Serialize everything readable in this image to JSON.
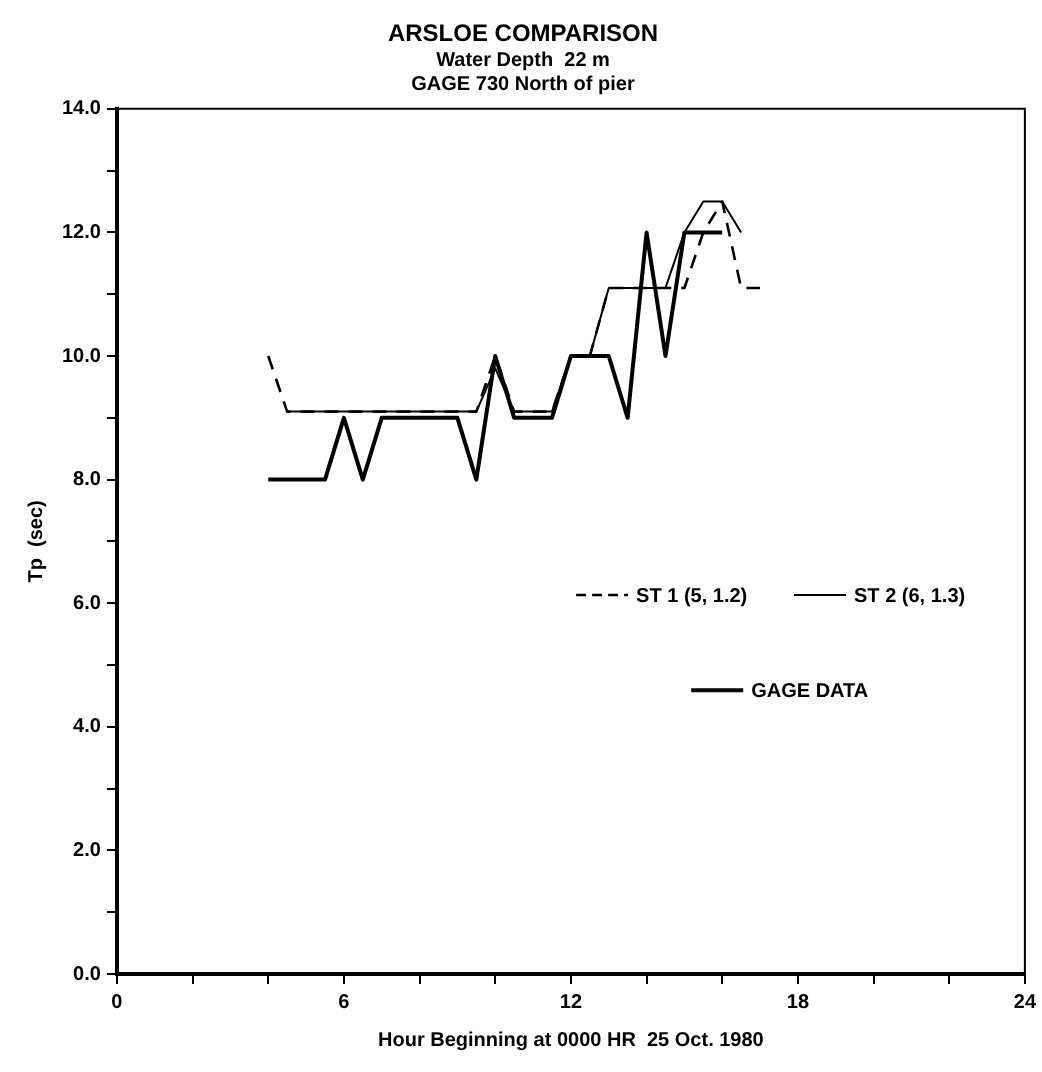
{
  "chart_data": {
    "type": "line",
    "title": "ARSLOE COMPARISON",
    "subtitle": "Water Depth  22 m\nGAGE 730 North of pier",
    "xlabel": "Hour Beginning at 0000 HR  25 Oct. 1980",
    "ylabel": "Tp  (sec)",
    "xlim": [
      0,
      24
    ],
    "xticks": [
      0,
      {
        "value": 2,
        "label": null
      },
      {
        "value": 4,
        "label": null
      },
      6,
      {
        "value": 8,
        "label": null
      },
      {
        "value": 10,
        "label": null
      },
      12,
      {
        "value": 14,
        "label": null
      },
      {
        "value": 16,
        "label": null
      },
      18,
      {
        "value": 20,
        "label": null
      },
      {
        "value": 22,
        "label": null
      },
      24
    ],
    "ylim": [
      0,
      14
    ],
    "yticks": [
      {
        "value": 0,
        "label": "0.0"
      },
      {
        "value": 1,
        "label": null
      },
      {
        "value": 2,
        "label": "2.0"
      },
      {
        "value": 3,
        "label": null
      },
      {
        "value": 4,
        "label": "4.0"
      },
      {
        "value": 5,
        "label": null
      },
      {
        "value": 6,
        "label": "6.0"
      },
      {
        "value": 7,
        "label": null
      },
      {
        "value": 8,
        "label": "8.0"
      },
      {
        "value": 9,
        "label": null
      },
      {
        "value": 10,
        "label": "10.0"
      },
      {
        "value": 11,
        "label": null
      },
      {
        "value": 12,
        "label": "12.0"
      },
      {
        "value": 13,
        "label": null
      },
      {
        "value": 14,
        "label": "14.0"
      }
    ],
    "grid": false,
    "legend": "right",
    "marker": "none",
    "series": [
      {
        "name": "ST 1 (5, 1.2)",
        "color": "#000000",
        "line_style": "dashed",
        "x": [
          4,
          4.5,
          9.5,
          10,
          10.5,
          11.5,
          12,
          12.5,
          13,
          15,
          15.5,
          16,
          16.5,
          17
        ],
        "values": [
          10,
          9.1,
          9.1,
          10,
          9.1,
          9.1,
          10,
          10,
          11.1,
          11.1,
          12,
          12.5,
          11.1,
          11.1
        ]
      },
      {
        "name": "ST 2 (6, 1.3)",
        "color": "#000000",
        "line_style": "solid",
        "x": [
          4.5,
          9.5,
          10,
          10.5,
          11.5,
          12,
          12.5,
          13,
          14.5,
          15,
          15.5,
          16,
          16.5
        ],
        "values": [
          9.1,
          9.1,
          9.8,
          9.1,
          9.1,
          10,
          10,
          11.1,
          11.1,
          12,
          12.5,
          12.5,
          12
        ]
      },
      {
        "name": "GAGE DATA",
        "color": "#000000",
        "line_style": "solid",
        "x": [
          4,
          5.5,
          6,
          6.5,
          7,
          9,
          9.5,
          10,
          10.5,
          11.5,
          12,
          13,
          13.5,
          14,
          14.5,
          15,
          16
        ],
        "values": [
          8,
          8,
          9,
          8,
          9,
          9,
          8,
          10,
          9,
          9,
          10,
          10,
          9,
          12,
          10,
          12,
          12
        ]
      }
    ]
  }
}
